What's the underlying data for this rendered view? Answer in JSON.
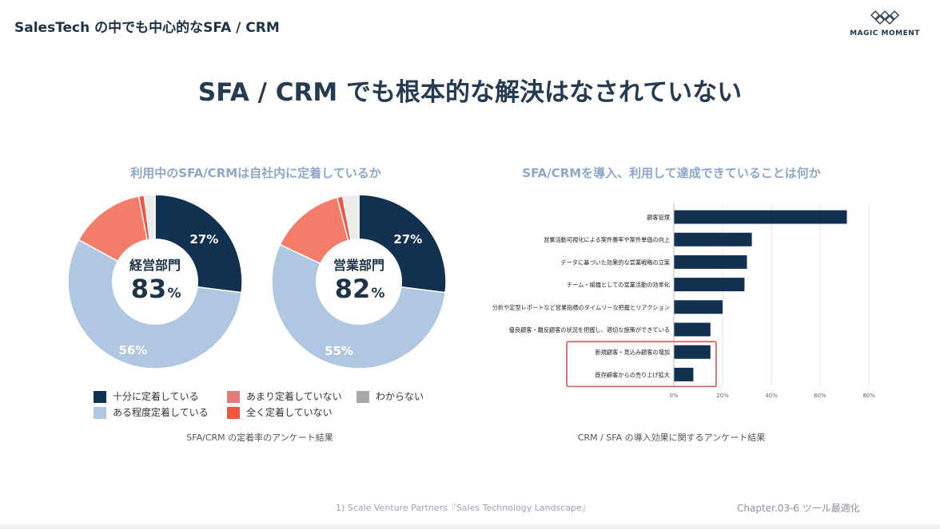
{
  "header": {
    "title": "SalesTech の中でも中心的なSFA / CRM",
    "logo_text": "MAGIC MOMENT"
  },
  "main_title": "SFA / CRM でも根本的な解決はなされていない",
  "colors": {
    "navy": "#12304f",
    "light_blue": "#afc7e1",
    "salmon": "#f47c6a",
    "red": "#f2543e",
    "gray": "#ececec",
    "legend_salmon": "#e57b78",
    "legend_gray": "#a8a8a8",
    "highlight_box": "#d66a6a"
  },
  "left": {
    "title": "利用中のSFA/CRMは自社内に定着しているか",
    "caption": "SFA/CRM の定着率のアンケート結果",
    "legend": [
      {
        "label": "十分に定着している",
        "color": "#12304f"
      },
      {
        "label": "あまり定着していない",
        "color": "#e57b78"
      },
      {
        "label": "わからない",
        "color": "#a8a8a8"
      },
      {
        "label": "ある程度定着している",
        "color": "#afc7e1"
      },
      {
        "label": "全く定着していない",
        "color": "#f2543e"
      }
    ]
  },
  "right": {
    "title": "SFA/CRMを導入、利用して達成できていることは何か",
    "caption": "CRM / SFA の導入効果に関するアンケート結果"
  },
  "chart_data": [
    {
      "type": "pie",
      "title": "経営部門",
      "center_value": "83",
      "center_unit": "%",
      "slices": [
        {
          "name": "十分に定着している",
          "value": 27,
          "label": "27%"
        },
        {
          "name": "ある程度定着している",
          "value": 56,
          "label": "56%"
        },
        {
          "name": "あまり定着していない",
          "value": 14,
          "label": ""
        },
        {
          "name": "全く定着していない",
          "value": 1,
          "label": ""
        },
        {
          "name": "わからない",
          "value": 2,
          "label": ""
        }
      ]
    },
    {
      "type": "pie",
      "title": "営業部門",
      "center_value": "82",
      "center_unit": "%",
      "slices": [
        {
          "name": "十分に定着している",
          "value": 27,
          "label": "27%"
        },
        {
          "name": "ある程度定着している",
          "value": 55,
          "label": "55%"
        },
        {
          "name": "あまり定着していない",
          "value": 14,
          "label": ""
        },
        {
          "name": "全く定着していない",
          "value": 1,
          "label": ""
        },
        {
          "name": "わからない",
          "value": 3,
          "label": ""
        }
      ]
    },
    {
      "type": "bar",
      "orientation": "horizontal",
      "categories": [
        "顧客管理",
        "営業活動可視化による案件勝率や案件単価の向上",
        "データに基づいた効果的な営業戦略の立案",
        "チーム・組織としての営業活動の効率化",
        "分析や定型レポートなど営業指標のタイムリーな把握とリアクション",
        "優良顧客・離反顧客の状況を把握し、適切な施策ができている",
        "新規顧客・見込み顧客の増加",
        "既存顧客からの売り上げ拡大"
      ],
      "values": [
        71,
        32,
        30,
        29,
        20,
        15,
        15,
        8
      ],
      "highlighted": [
        6,
        7
      ],
      "xlim": [
        0,
        80
      ],
      "xticks": [
        "0%",
        "20%",
        "40%",
        "60%",
        "80%"
      ],
      "grid": true
    }
  ],
  "footer": {
    "footnote": "1) Scale Venture Partners『Sales Technology Landscape』",
    "chapter": "Chapter.03-6 ツール最適化"
  }
}
